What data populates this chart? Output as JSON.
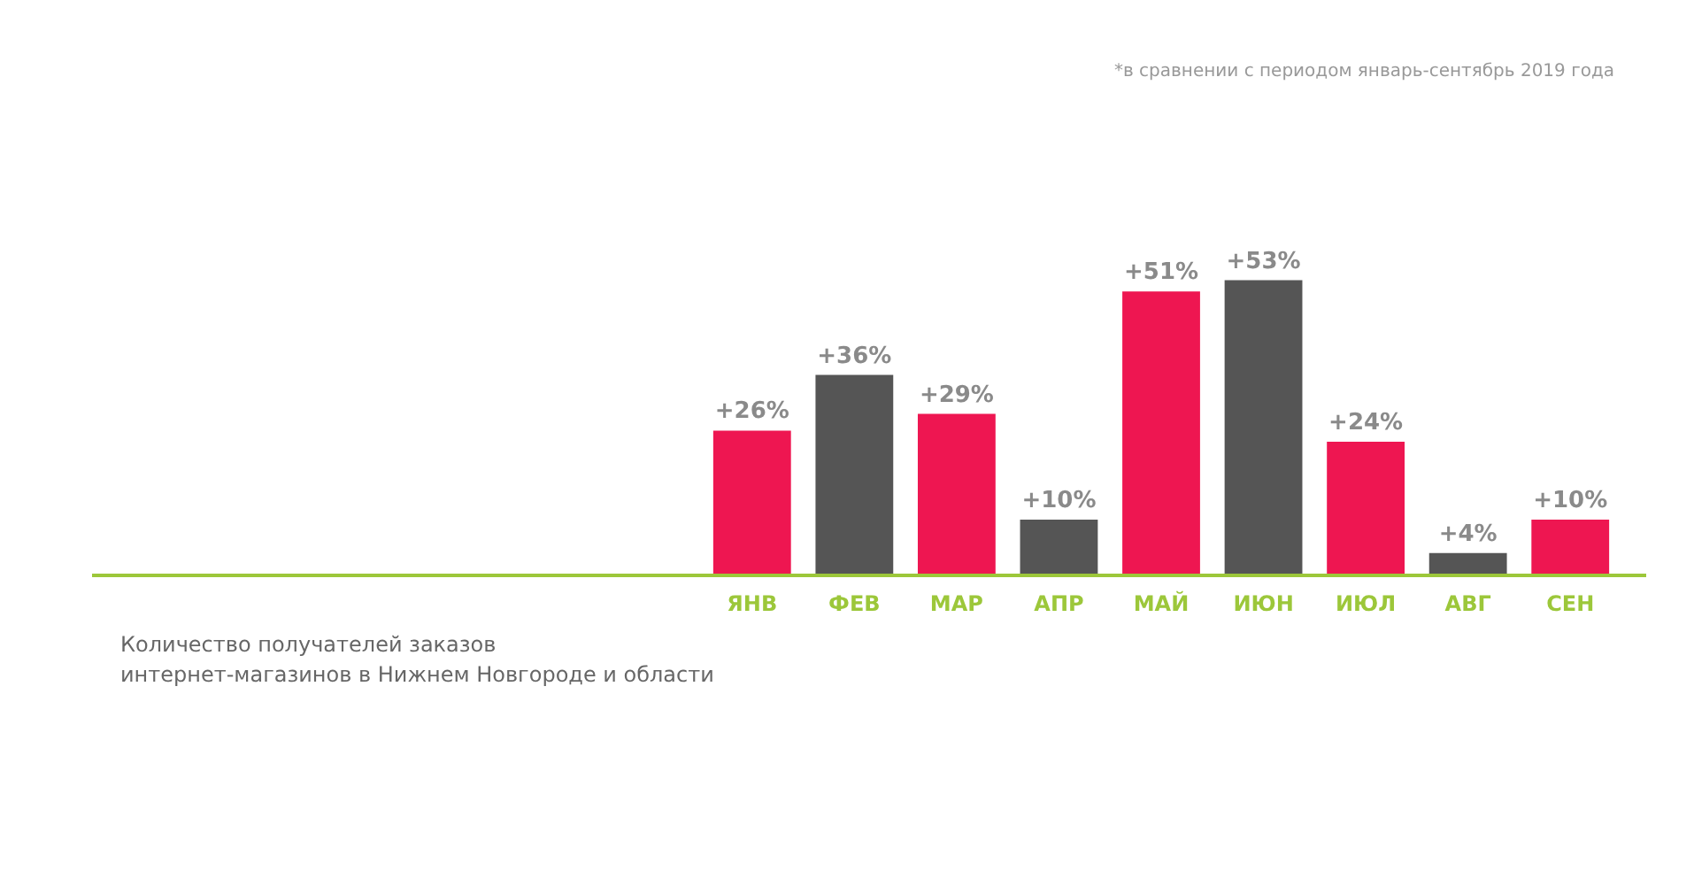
{
  "chart_data": {
    "type": "bar",
    "categories": [
      "ЯНВ",
      "ФЕВ",
      "МАР",
      "АПР",
      "МАЙ",
      "ИЮН",
      "ИЮЛ",
      "АВГ",
      "СЕН"
    ],
    "values": [
      26,
      36,
      29,
      10,
      51,
      53,
      24,
      4,
      10
    ],
    "colors": [
      "#ee1651",
      "#555555",
      "#ee1651",
      "#555555",
      "#ee1651",
      "#555555",
      "#ee1651",
      "#555555",
      "#ee1651"
    ],
    "value_labels": [
      "+26%",
      "+36%",
      "+29%",
      "+10%",
      "+51%",
      "+53%",
      "+24%",
      "+4%",
      "+10%"
    ],
    "annotations": [
      "*в сравнении с периодом январь-сентябрь 2019 года",
      "Количество получателей заказов\nинтернет-магазинов в Нижнем Новгороде и области"
    ]
  }
}
